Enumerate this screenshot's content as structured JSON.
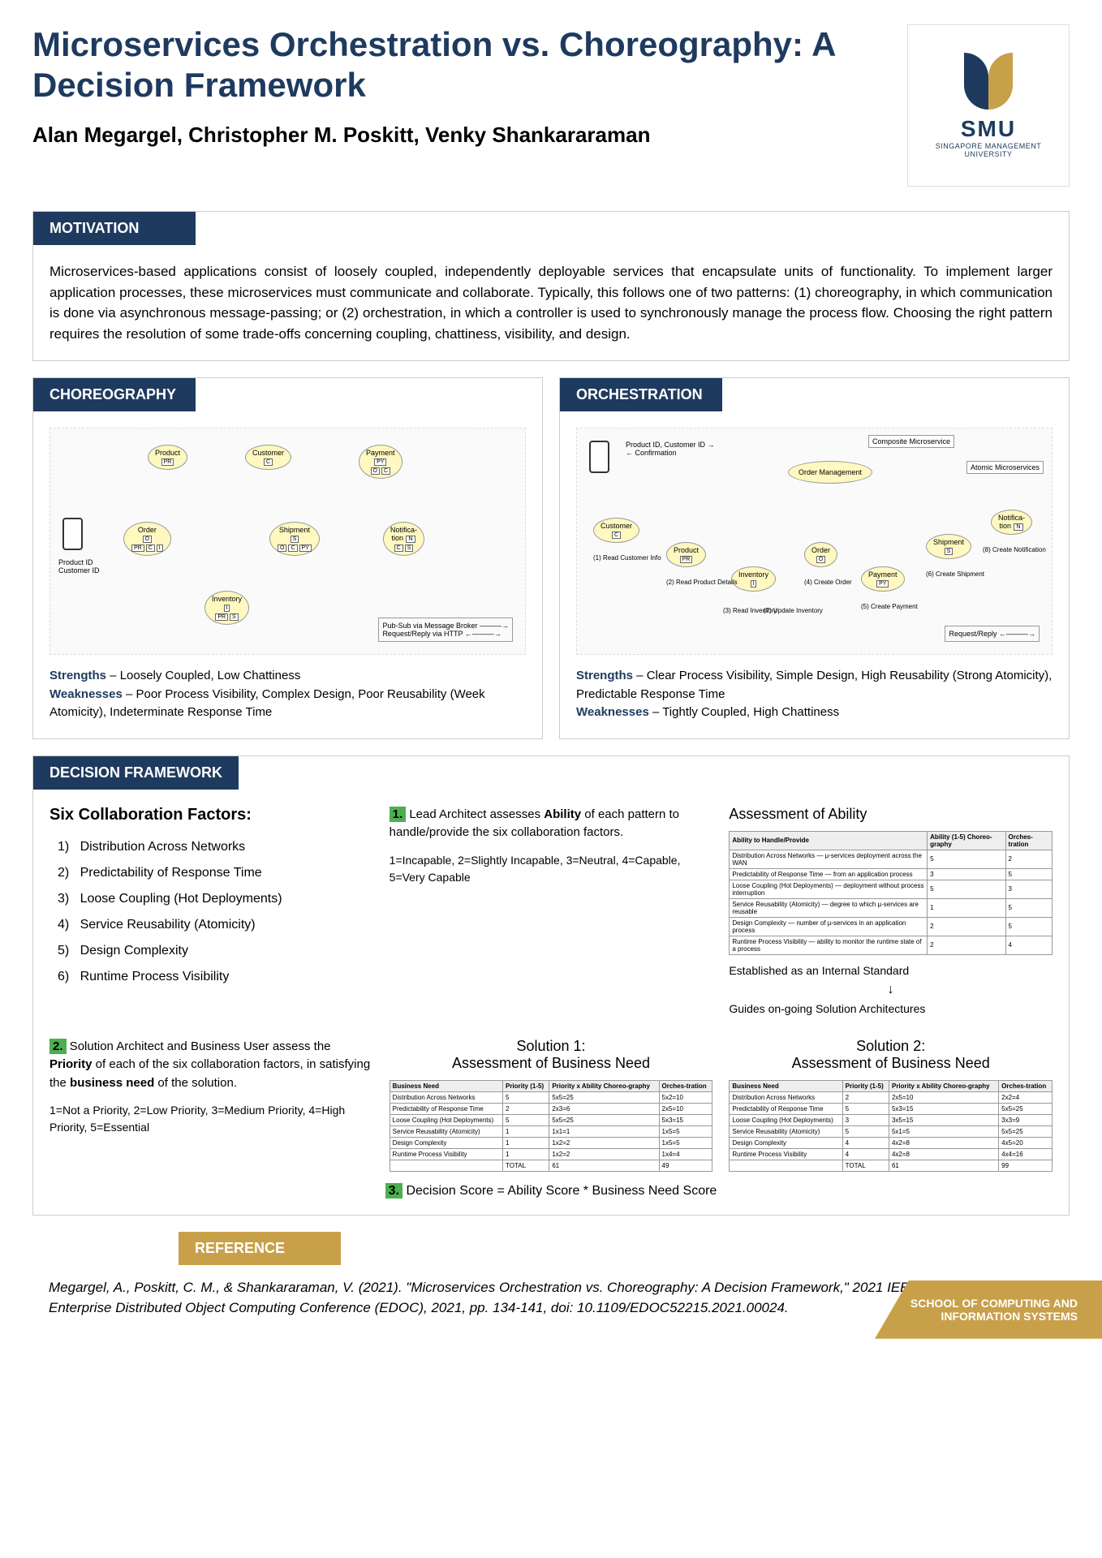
{
  "title": "Microservices Orchestration vs. Choreography: A Decision Framework",
  "authors": "Alan Megargel, Christopher M. Poskitt, Venky Shankararaman",
  "logo": {
    "main": "SMU",
    "sub": "SINGAPORE MANAGEMENT UNIVERSITY"
  },
  "motivation": {
    "header": "MOTIVATION",
    "text": "Microservices-based applications consist of loosely coupled, independently deployable services that encapsulate units of functionality. To implement larger application processes, these microservices must communicate and collaborate. Typically, this follows one of two patterns: (1) choreography, in which communication is done via asynchronous message-passing; or (2) orchestration, in which a controller is used to synchronously manage the process flow. Choosing the right pattern requires the resolution of some trade-offs concerning coupling, chattiness, visibility, and design."
  },
  "choreography": {
    "header": "CHOREOGRAPHY",
    "nodes": [
      "Product",
      "Customer",
      "Payment",
      "Order",
      "Shipment",
      "Notification",
      "Inventory"
    ],
    "input_label": "Product ID\nCustomer ID",
    "legend": "Pub-Sub via Message Broker ———→\nRequest/Reply via HTTP ←———→",
    "strengths_label": "Strengths",
    "strengths": " – Loosely Coupled, Low Chattiness",
    "weaknesses_label": "Weaknesses",
    "weaknesses": " – Poor Process Visibility, Complex Design, Poor Reusability (Week Atomicity), Indeterminate Response Time"
  },
  "orchestration": {
    "header": "ORCHESTRATION",
    "central": "Order Management",
    "labels": {
      "composite": "Composite Microservice",
      "atomic": "Atomic Microservices"
    },
    "flow_labels": [
      "Product ID, Customer ID →",
      "← Confirmation"
    ],
    "steps": [
      "(1) Read Customer Info",
      "(2) Read Product Details",
      "(3) Read Inventory",
      "(4) Create Order",
      "(5) Create Payment",
      "(6) Create Shipment",
      "(7) Update Inventory",
      "(8) Create Notification"
    ],
    "legend": "Request/Reply ←———→",
    "strengths_label": "Strengths",
    "strengths": " – Clear Process Visibility, Simple Design, High Reusability (Strong Atomicity), Predictable Response Time",
    "weaknesses_label": "Weaknesses",
    "weaknesses": " – Tightly Coupled, High Chattiness"
  },
  "framework": {
    "header": "DECISION FRAMEWORK",
    "factors_title": "Six Collaboration Factors:",
    "factors": [
      "Distribution Across Networks",
      "Predictability of Response Time",
      "Loose Coupling (Hot Deployments)",
      "Service Reusability (Atomicity)",
      "Design Complexity",
      "Runtime Process Visibility"
    ],
    "step1_num": "1.",
    "step1": " Lead Architect assesses Ability of each pattern to handle/provide the six collaboration factors.",
    "step1_scale": "1=Incapable, 2=Slightly Incapable, 3=Neutral, 4=Capable, 5=Very Capable",
    "ability_title": "Assessment of Ability",
    "ability_table": {
      "headers": [
        "Ability to Handle/Provide",
        "Ability (1-5) Choreo-graphy",
        "Orches-tration"
      ],
      "rows": [
        [
          "Distribution Across Networks — µ-services deployment across the WAN",
          "5",
          "2"
        ],
        [
          "Predictability of Response Time — from an application process",
          "3",
          "5"
        ],
        [
          "Loose Coupling (Hot Deployments) — deployment without process interruption",
          "5",
          "3"
        ],
        [
          "Service Reusability (Atomicity) — degree to which µ-services are reusable",
          "1",
          "5"
        ],
        [
          "Design Complexity — number of µ-services in an application process",
          "2",
          "5"
        ],
        [
          "Runtime Process Visibility — ability to monitor the runtime state of a process",
          "2",
          "4"
        ]
      ]
    },
    "guide1": "Established as an Internal Standard",
    "guide2": "Guides on-going Solution Architectures",
    "step2_num": "2.",
    "step2": " Solution Architect and Business User assess the Priority of each of the six collaboration factors, in satisfying the business need of the solution.",
    "step2_scale": "1=Not a Priority, 2=Low Priority, 3=Medium Priority, 4=High Priority, 5=Essential",
    "sol1_title": "Solution 1: Assessment of Business Need",
    "sol2_title": "Solution 2: Assessment of Business Need",
    "need_table_headers": [
      "Business Need",
      "Priority (1-5)",
      "Priority x Ability Choreo-graphy",
      "Orches-tration"
    ],
    "sol1_rows": [
      [
        "Distribution Across Networks",
        "5",
        "5x5=25",
        "5x2=10"
      ],
      [
        "Predictability of Response Time",
        "2",
        "2x3=6",
        "2x5=10"
      ],
      [
        "Loose Coupling (Hot Deployments)",
        "5",
        "5x5=25",
        "5x3=15"
      ],
      [
        "Service Reusability (Atomicity)",
        "1",
        "1x1=1",
        "1x5=5"
      ],
      [
        "Design Complexity",
        "1",
        "1x2=2",
        "1x5=5"
      ],
      [
        "Runtime Process Visibility",
        "1",
        "1x2=2",
        "1x4=4"
      ],
      [
        "",
        "TOTAL",
        "61",
        "49"
      ]
    ],
    "sol2_rows": [
      [
        "Distribution Across Networks",
        "2",
        "2x5=10",
        "2x2=4"
      ],
      [
        "Predictability of Response Time",
        "5",
        "5x3=15",
        "5x5=25"
      ],
      [
        "Loose Coupling (Hot Deployments)",
        "3",
        "3x5=15",
        "3x3=9"
      ],
      [
        "Service Reusability (Atomicity)",
        "5",
        "5x1=5",
        "5x5=25"
      ],
      [
        "Design Complexity",
        "4",
        "4x2=8",
        "4x5=20"
      ],
      [
        "Runtime Process Visibility",
        "4",
        "4x2=8",
        "4x4=16"
      ],
      [
        "",
        "TOTAL",
        "61",
        "99"
      ]
    ],
    "step3_num": "3.",
    "step3": " Decision Score = Ability Score * Business Need Score"
  },
  "reference": {
    "header": "REFERENCE",
    "text": "Megargel, A., Poskitt, C. M., & Shankararaman, V. (2021). \"Microservices Orchestration vs. Choreography: A Decision Framework,\" 2021 IEEE 25th International Enterprise Distributed Object Computing Conference (EDOC), 2021, pp. 134-141, doi: 10.1109/EDOC52215.2021.00024."
  },
  "footer": "SCHOOL OF COMPUTING AND INFORMATION SYSTEMS"
}
